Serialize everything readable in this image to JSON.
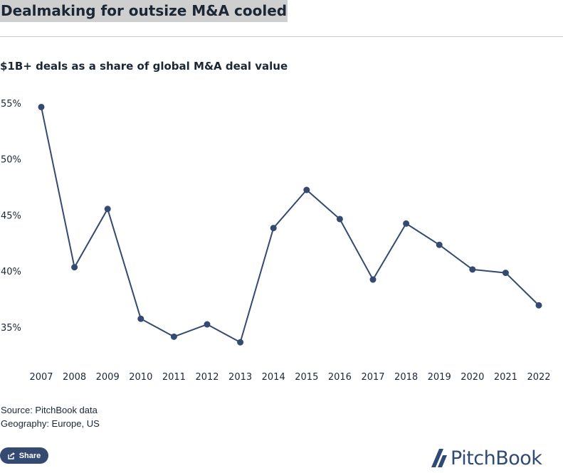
{
  "header": {
    "title": "Dealmaking for outsize M&A cooled",
    "subtitle": "$1B+ deals as a share of global M&A deal value"
  },
  "chart_data": {
    "type": "line",
    "title": "$1B+ deals as a share of global M&A deal value",
    "xlabel": "",
    "ylabel": "",
    "categories": [
      "2007",
      "2008",
      "2009",
      "2010",
      "2011",
      "2012",
      "2013",
      "2014",
      "2015",
      "2016",
      "2017",
      "2018",
      "2019",
      "2020",
      "2021",
      "2022"
    ],
    "series": [
      {
        "name": "$1B+ deals share",
        "values": [
          54.7,
          40.4,
          45.6,
          35.8,
          34.2,
          35.3,
          33.7,
          43.9,
          47.3,
          44.7,
          39.3,
          44.3,
          42.4,
          40.2,
          39.9,
          37.0
        ]
      }
    ],
    "yticks": [
      "35%",
      "40%",
      "45%",
      "50%",
      "55%"
    ],
    "ytick_values": [
      35,
      40,
      45,
      50,
      55
    ],
    "ylim": [
      32,
      56
    ],
    "grid": false,
    "line_color": "#344a71"
  },
  "footer": {
    "source": "Source: PitchBook data",
    "geography": "Geography: Europe, US",
    "share_label": "Share",
    "brand": "PitchBook"
  },
  "icons": {
    "share": "share-icon",
    "logo": "pitchbook-logo-icon"
  }
}
